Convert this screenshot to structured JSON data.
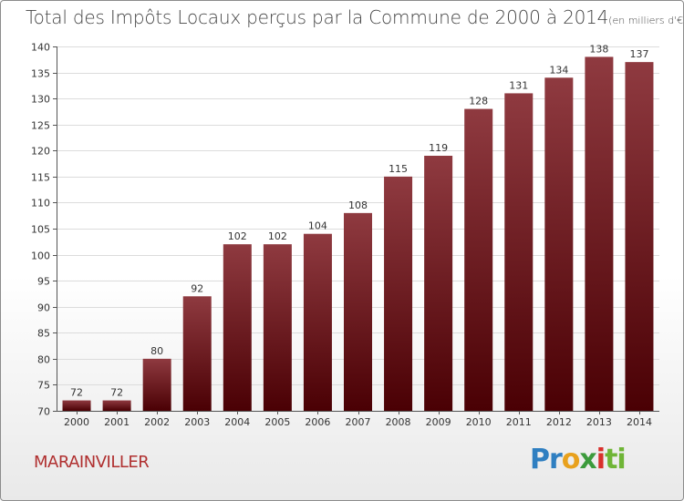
{
  "title": {
    "main": "Total des Impôts Locaux perçus par la Commune de 2000 à 2014",
    "unit": "(en milliers d'€)"
  },
  "commune": "MARAINVILLER",
  "logo": {
    "part1": "Pr",
    "part2": "o",
    "part3": "x",
    "part4": "i",
    "part5": "ti"
  },
  "colors": {
    "bar_top": "#8f3a40",
    "bar_bottom": "#4a0004",
    "commune_text": "#b03030"
  },
  "chart_data": {
    "type": "bar",
    "title": "Total des Impôts Locaux perçus par la Commune de 2000 à 2014",
    "xlabel": "",
    "ylabel": "",
    "categories": [
      "2000",
      "2001",
      "2002",
      "2003",
      "2004",
      "2005",
      "2006",
      "2007",
      "2008",
      "2009",
      "2010",
      "2011",
      "2012",
      "2013",
      "2014"
    ],
    "values": [
      72,
      72,
      80,
      92,
      102,
      102,
      104,
      108,
      115,
      119,
      128,
      131,
      134,
      138,
      137
    ],
    "ylim": [
      70,
      140
    ],
    "yticks": [
      70,
      75,
      80,
      85,
      90,
      95,
      100,
      105,
      110,
      115,
      120,
      125,
      130,
      135,
      140
    ],
    "grid": true
  }
}
